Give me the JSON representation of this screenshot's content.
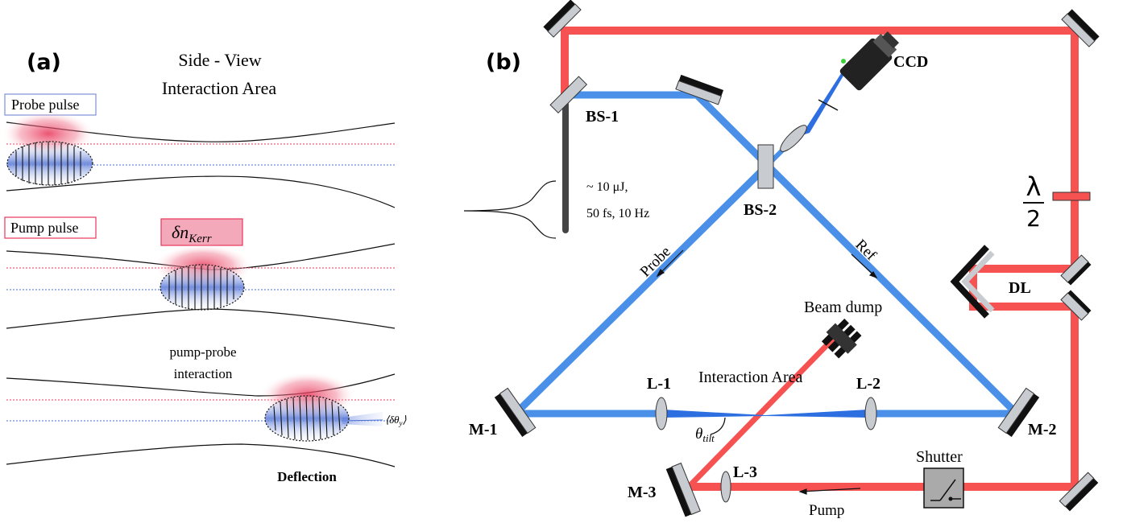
{
  "panel_a": {
    "label": "(a)",
    "title_line1": "Side - View",
    "title_line2": "Interaction Area",
    "probe_pulse_label": "Probe pulse",
    "pump_pulse_label": "Pump pulse",
    "kerr_label": "δn",
    "kerr_subscript": "Kerr",
    "interaction_line1": "pump-probe",
    "interaction_line2": "interaction",
    "deflection_symbol": "⟨δθ",
    "deflection_subscript": "y",
    "deflection_close": "⟩",
    "deflection_label": "Deflection",
    "colors": {
      "pump": "#e8365a",
      "probe": "#4a6fd4",
      "probe_box": "#7f8fd8",
      "pump_box": "#e8365a"
    }
  },
  "panel_b": {
    "label": "(b)",
    "components": {
      "bs1": "BS-1",
      "bs2": "BS-2",
      "ccd": "CCD",
      "dl": "DL",
      "m1": "M-1",
      "m2": "M-2",
      "m3": "M-3",
      "l1": "L-1",
      "l2": "L-2",
      "l3": "L-3",
      "shutter": "Shutter",
      "beam_dump": "Beam dump",
      "interaction_area": "Interaction Area"
    },
    "pulse_info_line1": "~ 10 μJ,",
    "pulse_info_line2": "50 fs, 10 Hz",
    "waveplate_numerator": "λ",
    "waveplate_denominator": "2",
    "beam_labels": {
      "probe": "Probe",
      "ref": "Ref",
      "pump": "Pump"
    },
    "angle_symbol": "θ",
    "angle_subscript": "tilt",
    "colors": {
      "red_beam": "#f75252",
      "blue_beam": "#4a90e8",
      "mirror_face": "#c8ccd0",
      "mirror_back": "#111111"
    }
  }
}
